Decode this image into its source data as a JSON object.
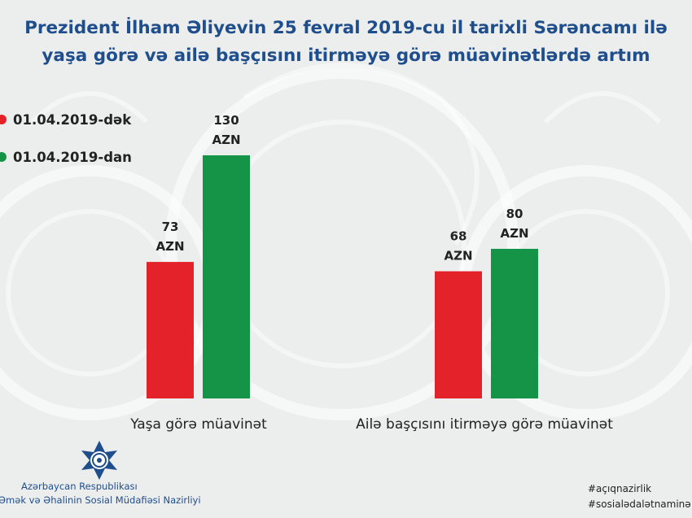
{
  "title_lines": [
    "Prezident İlham Əliyevin 25 fevral 2019-cu il tarixli Sərəncamı ilə",
    "yaşa görə və ailə başçısını itirməyə görə müavinətlərdə artım"
  ],
  "legend": [
    {
      "label": "01.04.2019-dək",
      "color": "#e32229"
    },
    {
      "label": "01.04.2019-dan",
      "color": "#159447"
    }
  ],
  "chart_data": {
    "type": "bar",
    "categories": [
      "Yaşa görə müavinət",
      "Ailə başçısını itirməyə görə müavinət"
    ],
    "series": [
      {
        "name": "01.04.2019-dək",
        "values": [
          73,
          68
        ],
        "color": "#e32229"
      },
      {
        "name": "01.04.2019-dan",
        "values": [
          130,
          80
        ],
        "color": "#159447"
      }
    ],
    "unit": "AZN"
  },
  "footer": {
    "org_line1": "Azərbaycan Respublikası",
    "org_line2": "Əmək və Əhalinin Sosial Müdafiəsi Nazirliyi",
    "hashtags": [
      "#açıqnazirlik",
      "#sosialədalətnaminə"
    ]
  }
}
